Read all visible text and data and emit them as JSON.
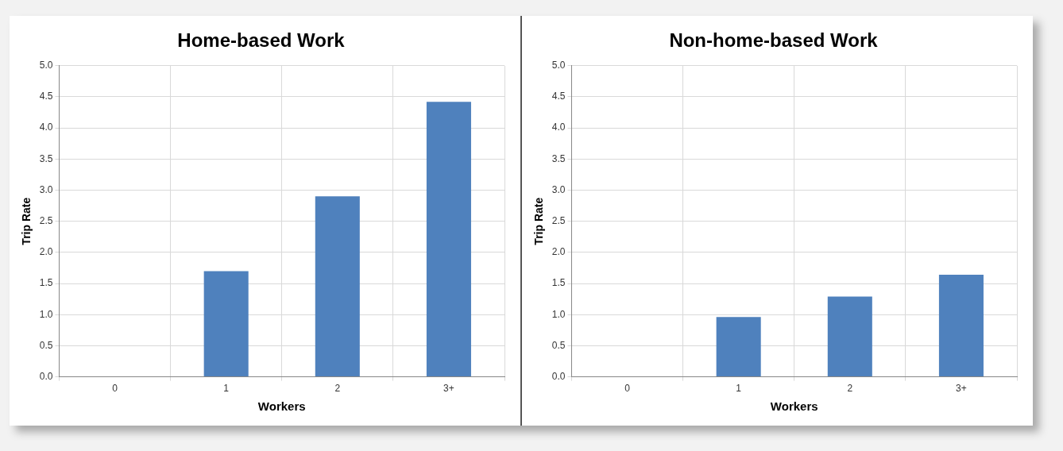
{
  "chart_data": [
    {
      "type": "bar",
      "title": "Home-based Work",
      "xlabel": "Workers",
      "ylabel": "Trip Rate",
      "categories": [
        "0",
        "1",
        "2",
        "3+"
      ],
      "values": [
        0,
        1.7,
        2.9,
        4.42
      ],
      "color": "#4f81bd",
      "ylim": [
        0,
        5
      ],
      "yticks": [
        {
          "value": 0,
          "label": "0.0"
        },
        {
          "value": 0.5,
          "label": "0.5"
        },
        {
          "value": 1,
          "label": "1.0"
        },
        {
          "value": 1.5,
          "label": "1.5"
        },
        {
          "value": 2,
          "label": "2.0"
        },
        {
          "value": 2.5,
          "label": "2.5"
        },
        {
          "value": 3,
          "label": "3.0"
        },
        {
          "value": 3.5,
          "label": "3.5"
        },
        {
          "value": 4,
          "label": "4.0"
        },
        {
          "value": 4.5,
          "label": "4.5"
        },
        {
          "value": 5,
          "label": "5.0"
        }
      ],
      "grid": true
    },
    {
      "type": "bar",
      "title": "Non-home-based Work",
      "xlabel": "Workers",
      "ylabel": "Trip Rate",
      "categories": [
        "0",
        "1",
        "2",
        "3+"
      ],
      "values": [
        0,
        0.96,
        1.29,
        1.64
      ],
      "color": "#4f81bd",
      "ylim": [
        0,
        5
      ],
      "yticks": [
        {
          "value": 0,
          "label": "0.0"
        },
        {
          "value": 0.5,
          "label": "0.5"
        },
        {
          "value": 1,
          "label": "1.0"
        },
        {
          "value": 1.5,
          "label": "1.5"
        },
        {
          "value": 2,
          "label": "2.0"
        },
        {
          "value": 2.5,
          "label": "2.5"
        },
        {
          "value": 3,
          "label": "3.0"
        },
        {
          "value": 3.5,
          "label": "3.5"
        },
        {
          "value": 4,
          "label": "4.0"
        },
        {
          "value": 4.5,
          "label": "4.5"
        },
        {
          "value": 5,
          "label": "5.0"
        }
      ],
      "grid": true
    }
  ]
}
